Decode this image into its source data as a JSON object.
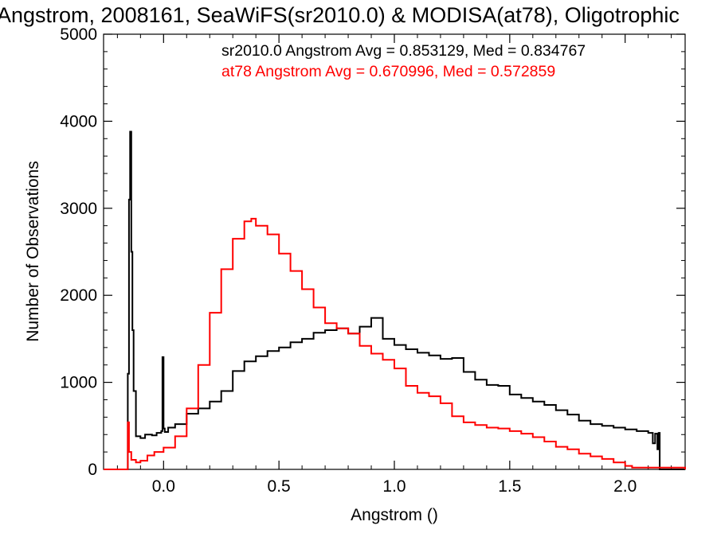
{
  "chart_data": {
    "type": "line",
    "title": "Angstrom, 2008161, SeaWiFS(sr2010.0) & MODISA(at78), Oligotrophic",
    "xlabel": "Angstrom ()",
    "ylabel": "Number of Observations",
    "xlim": [
      -0.26,
      2.26
    ],
    "ylim": [
      0,
      5000
    ],
    "x_ticks": [
      0.0,
      0.5,
      1.0,
      1.5,
      2.0
    ],
    "x_tick_labels": [
      "0.0",
      "0.5",
      "1.0",
      "1.5",
      "2.0"
    ],
    "y_ticks": [
      0,
      1000,
      2000,
      3000,
      4000,
      5000
    ],
    "y_tick_labels": [
      "0",
      "1000",
      "2000",
      "3000",
      "4000",
      "5000"
    ],
    "grid": false,
    "annotations": [
      {
        "text": "sr2010.0 Angstrom Avg = 0.853129, Med = 0.834767",
        "color": "#000000"
      },
      {
        "text": "at78 Angstrom Avg = 0.670996, Med = 0.572859",
        "color": "#ff0000"
      }
    ],
    "series": [
      {
        "color": "#000000",
        "x": [
          -0.26,
          -0.16,
          -0.155,
          -0.15,
          -0.145,
          -0.14,
          -0.135,
          -0.13,
          -0.12,
          -0.1,
          -0.08,
          -0.05,
          -0.03,
          -0.01,
          -0.005,
          0.0,
          0.005,
          0.02,
          0.05,
          0.1,
          0.15,
          0.2,
          0.25,
          0.3,
          0.35,
          0.4,
          0.45,
          0.5,
          0.55,
          0.6,
          0.65,
          0.7,
          0.75,
          0.8,
          0.85,
          0.9,
          0.95,
          1.0,
          1.05,
          1.1,
          1.15,
          1.2,
          1.25,
          1.3,
          1.35,
          1.4,
          1.45,
          1.5,
          1.55,
          1.6,
          1.65,
          1.7,
          1.75,
          1.8,
          1.85,
          1.9,
          1.95,
          2.0,
          2.05,
          2.1,
          2.12,
          2.13,
          2.14,
          2.145,
          2.15,
          2.26
        ],
        "y": [
          0,
          0,
          1100,
          3100,
          3880,
          2500,
          1600,
          900,
          380,
          360,
          400,
          390,
          420,
          440,
          1290,
          470,
          430,
          480,
          520,
          640,
          700,
          780,
          900,
          1130,
          1240,
          1300,
          1360,
          1400,
          1460,
          1500,
          1570,
          1600,
          1620,
          1560,
          1640,
          1740,
          1500,
          1430,
          1380,
          1340,
          1310,
          1270,
          1280,
          1120,
          1030,
          970,
          960,
          860,
          820,
          780,
          740,
          680,
          630,
          560,
          520,
          500,
          480,
          460,
          440,
          420,
          300,
          410,
          230,
          420,
          0,
          0
        ]
      },
      {
        "color": "#ff0000",
        "x": [
          -0.26,
          -0.16,
          -0.155,
          -0.15,
          -0.14,
          -0.12,
          -0.1,
          -0.07,
          -0.04,
          0.0,
          0.05,
          0.1,
          0.15,
          0.2,
          0.25,
          0.3,
          0.35,
          0.38,
          0.4,
          0.45,
          0.5,
          0.55,
          0.6,
          0.65,
          0.7,
          0.75,
          0.8,
          0.85,
          0.9,
          0.95,
          1.0,
          1.05,
          1.1,
          1.15,
          1.2,
          1.25,
          1.3,
          1.35,
          1.4,
          1.45,
          1.5,
          1.55,
          1.6,
          1.65,
          1.7,
          1.75,
          1.8,
          1.85,
          1.9,
          1.95,
          2.0,
          2.03,
          2.26
        ],
        "y": [
          0,
          0,
          540,
          200,
          110,
          80,
          100,
          160,
          200,
          250,
          380,
          700,
          1200,
          1800,
          2300,
          2650,
          2850,
          2880,
          2800,
          2700,
          2480,
          2280,
          2070,
          1860,
          1680,
          1620,
          1560,
          1420,
          1330,
          1260,
          1160,
          960,
          880,
          840,
          760,
          610,
          540,
          510,
          480,
          470,
          440,
          410,
          370,
          320,
          260,
          230,
          180,
          150,
          120,
          80,
          40,
          20,
          0
        ]
      }
    ]
  }
}
